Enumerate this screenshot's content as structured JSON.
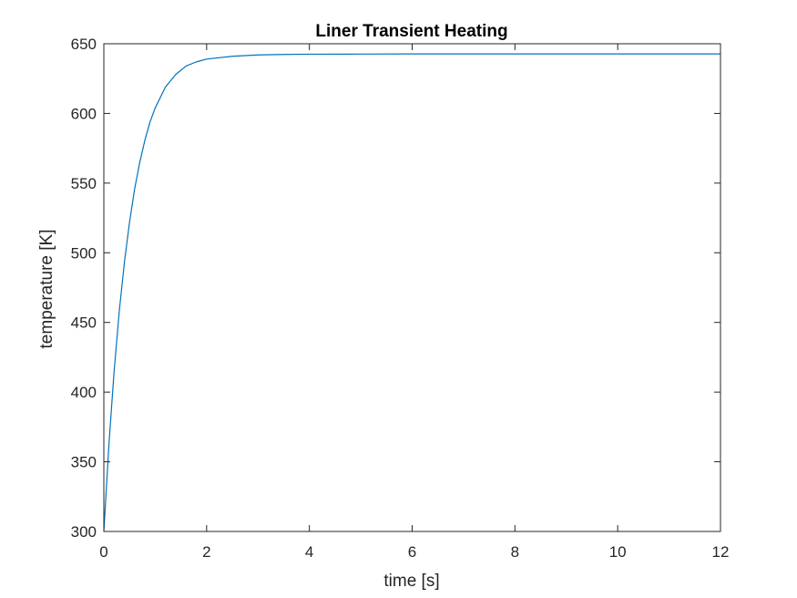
{
  "chart_data": {
    "type": "line",
    "title": "Liner Transient Heating",
    "xlabel": "time [s]",
    "ylabel": "temperature [K]",
    "xlim": [
      0,
      12
    ],
    "ylim": [
      300,
      650
    ],
    "xticks": [
      0,
      2,
      4,
      6,
      8,
      10,
      12
    ],
    "yticks": [
      300,
      350,
      400,
      450,
      500,
      550,
      600,
      650
    ],
    "grid": false,
    "series": [
      {
        "color": "#0072BD",
        "x": [
          0,
          0.1,
          0.2,
          0.3,
          0.4,
          0.5,
          0.6,
          0.7,
          0.8,
          0.9,
          1.0,
          1.2,
          1.4,
          1.6,
          1.8,
          2.0,
          2.5,
          3.0,
          3.5,
          4.0,
          5.0,
          6.0,
          8.0,
          10.0,
          12.0
        ],
        "y": [
          300,
          363,
          415,
          458,
          493,
          522,
          546,
          565,
          581,
          594,
          604,
          619,
          628,
          634,
          637,
          639,
          641,
          642,
          642.3,
          642.5,
          642.6,
          642.7,
          642.7,
          642.7,
          642.7
        ]
      }
    ]
  }
}
